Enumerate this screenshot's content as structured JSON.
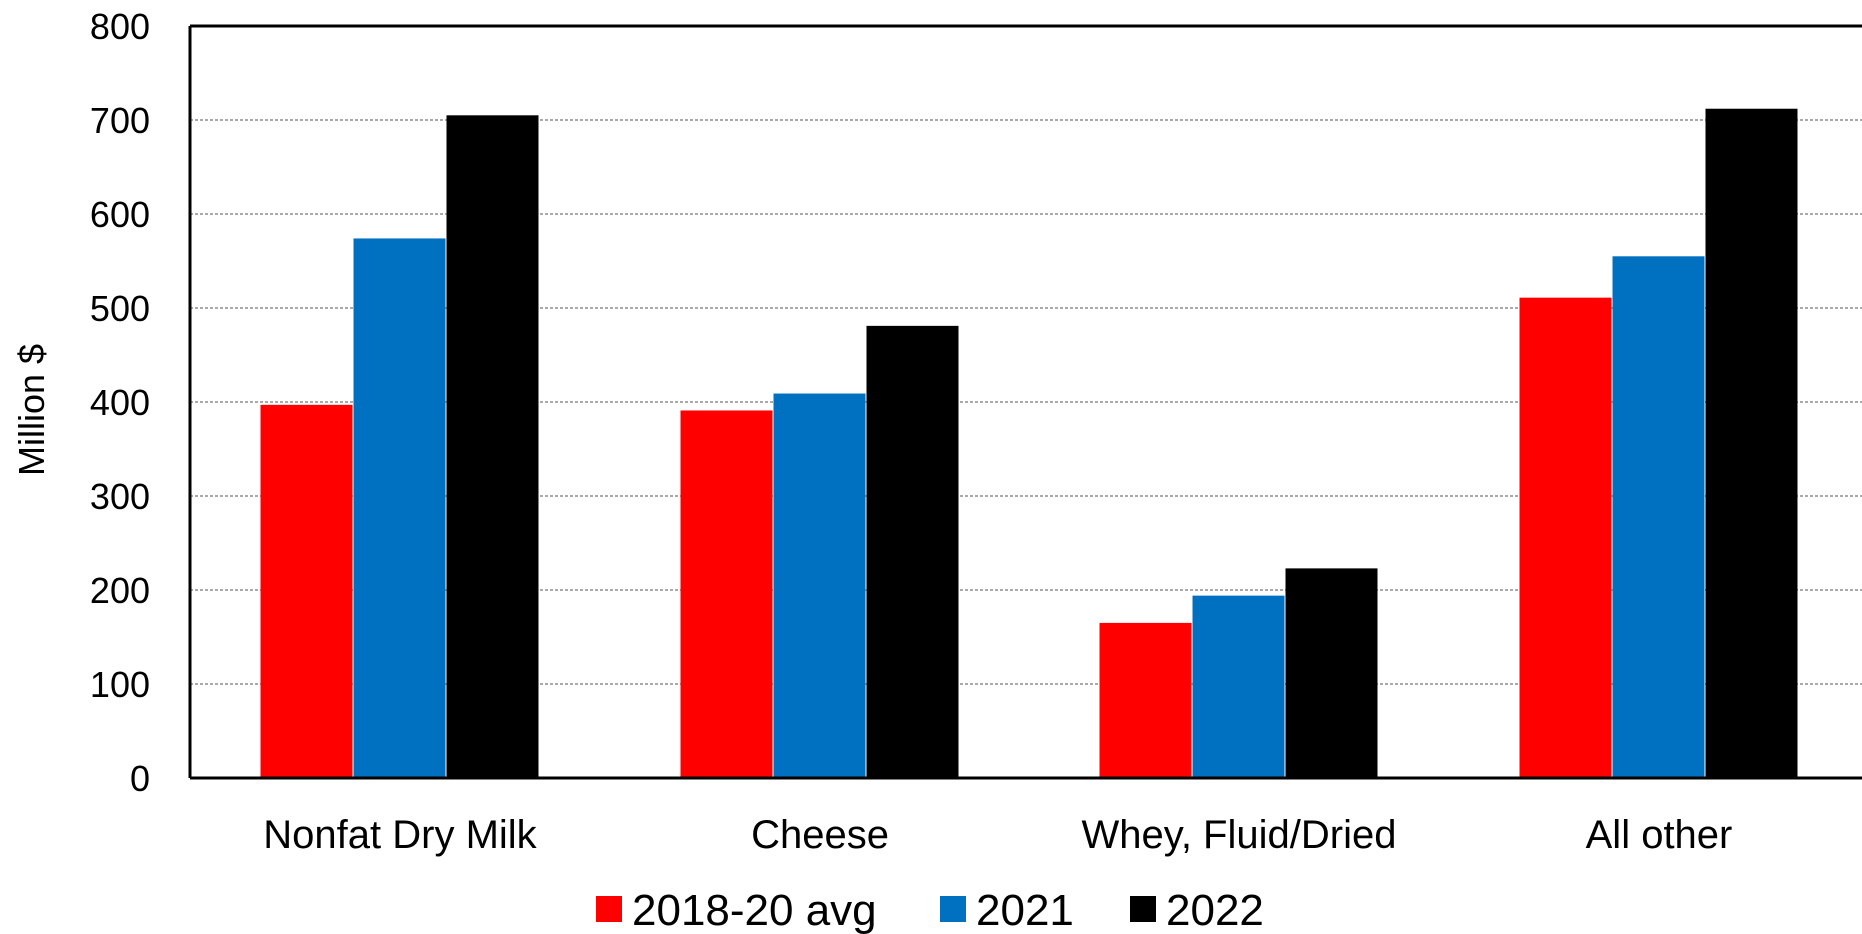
{
  "chart_data": {
    "type": "bar",
    "ylabel": "Million $",
    "ylim": [
      0,
      800
    ],
    "yticks": [
      0,
      100,
      200,
      300,
      400,
      500,
      600,
      700,
      800
    ],
    "grid": "horizontal dashed",
    "legend_position": "bottom",
    "categories": [
      "Nonfat Dry Milk",
      "Cheese",
      "Whey, Fluid/Dried",
      "All other"
    ],
    "series": [
      {
        "name": "2018-20 avg",
        "color": "#ff0000",
        "values": [
          397,
          391,
          165,
          511
        ]
      },
      {
        "name": "2021",
        "color": "#0070c0",
        "values": [
          574,
          409,
          194,
          555
        ]
      },
      {
        "name": "2022",
        "color": "#000000",
        "values": [
          705,
          481,
          223,
          712
        ]
      }
    ]
  }
}
